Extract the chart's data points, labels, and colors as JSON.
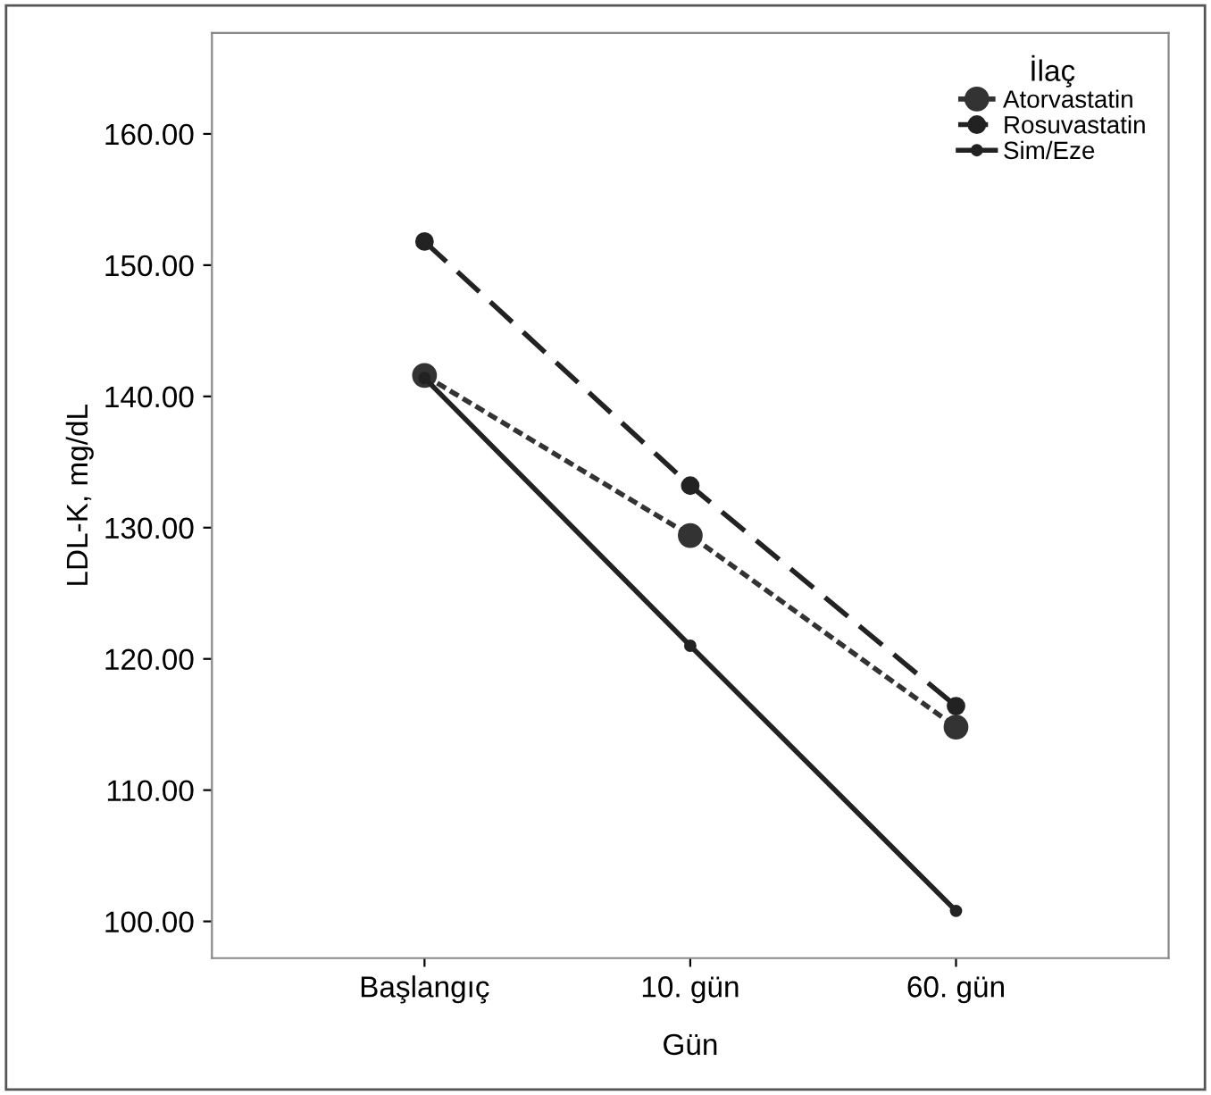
{
  "chart_data": {
    "type": "line",
    "xlabel": "Gün",
    "ylabel": "LDL-K, mg/dL",
    "legend_title": "İlaç",
    "categories": [
      "Başlangıç",
      "10. gün",
      "60. gün"
    ],
    "series": [
      {
        "name": "Atorvastatin",
        "color": "#333333",
        "values": [
          141.6,
          129.4,
          114.8
        ],
        "line_style": "dotted"
      },
      {
        "name": "Rosuvastatin",
        "color": "#222222",
        "values": [
          151.8,
          133.2,
          116.4
        ],
        "line_style": "dashed"
      },
      {
        "name": "Sim/Eze",
        "color": "#222222",
        "values": [
          141.4,
          121.0,
          100.8
        ],
        "line_style": "solid"
      }
    ],
    "ylim": [
      97.2,
      167.7
    ],
    "yticks": [
      {
        "value": 100,
        "label": "100.00"
      },
      {
        "value": 110,
        "label": "110.00"
      },
      {
        "value": 120,
        "label": "120.00"
      },
      {
        "value": 130,
        "label": "130.00"
      },
      {
        "value": 140,
        "label": "140.00"
      },
      {
        "value": 150,
        "label": "150.00"
      },
      {
        "value": 160,
        "label": "160.00"
      }
    ],
    "marker": "circle",
    "grid": false,
    "legend": "top right"
  }
}
